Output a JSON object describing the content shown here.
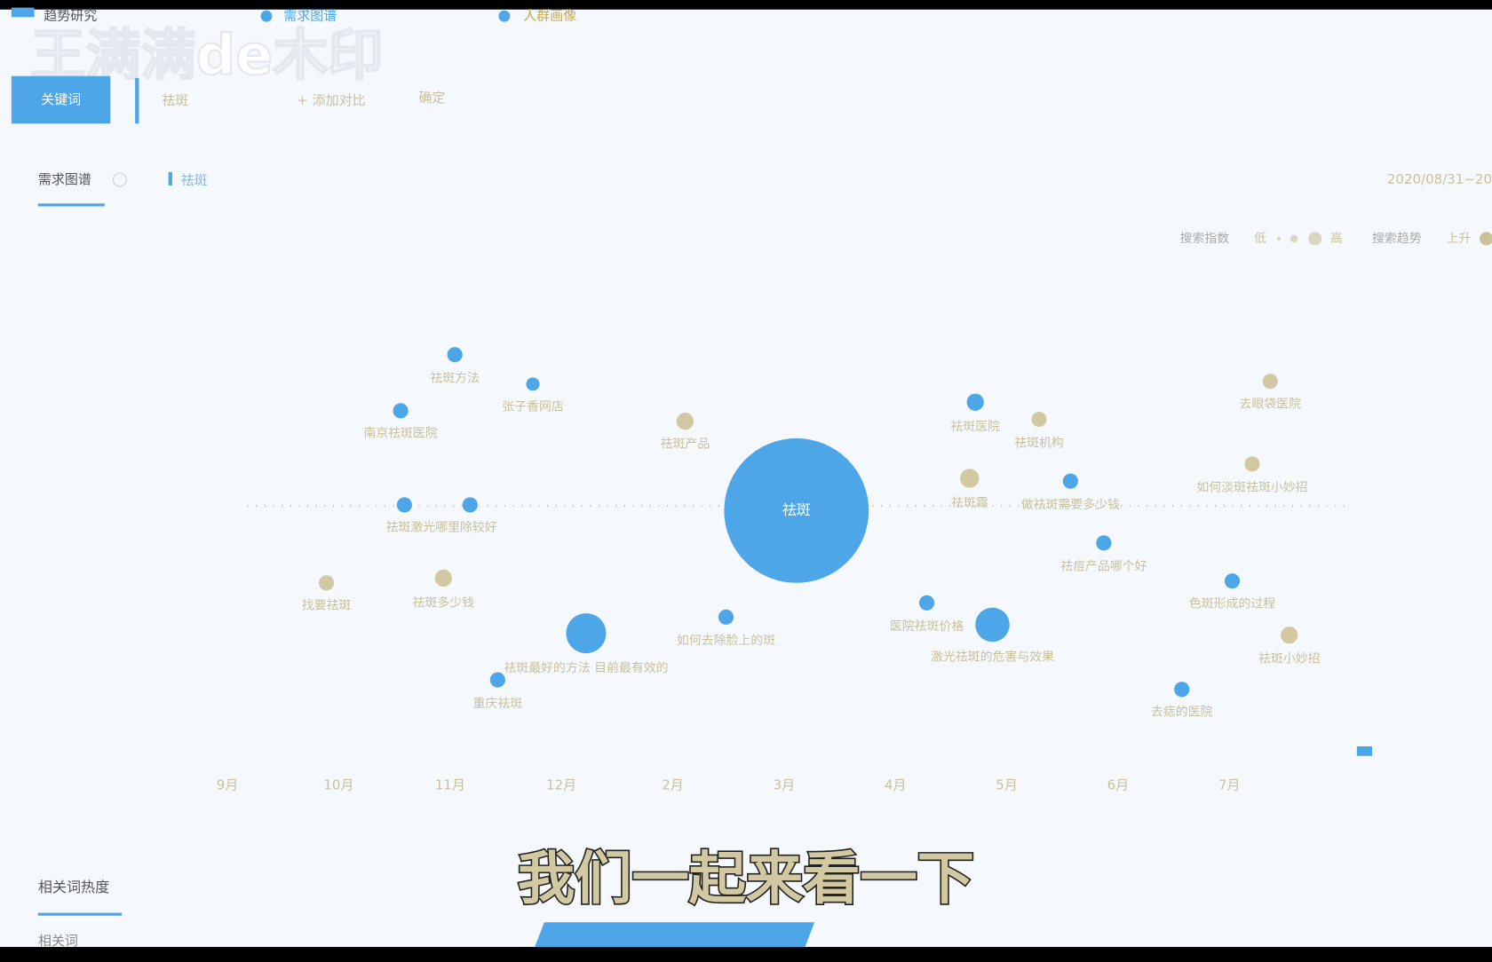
{
  "top_tabs": [
    "趋势研究",
    "需求图谱",
    "人群画像"
  ],
  "watermark": "王满满de木印",
  "search": {
    "button": "关键词",
    "keyword": "祛斑",
    "add": "+ 添加对比",
    "confirm": "确定"
  },
  "section": {
    "tab": "需求图谱",
    "keyword": "祛斑",
    "date": "2020/08/31~20"
  },
  "legend": {
    "index_title": "搜索指数",
    "low": "低",
    "high": "高",
    "trend_title": "搜索趋势",
    "rise": "上升"
  },
  "center": {
    "label": "祛斑",
    "color": "#4da6e8"
  },
  "nodes": [
    {
      "label": "祛斑方法",
      "color": "#4da6e8"
    },
    {
      "label": "张子香网店",
      "color": "#4da6e8"
    },
    {
      "label": "南京祛斑医院",
      "color": "#4da6e8"
    },
    {
      "label": "祛斑产品",
      "color": "#d2c9a3"
    },
    {
      "label": "祛斑激光哪里除较好",
      "color": "#4da6e8"
    },
    {
      "label": "找要祛斑",
      "color": "#d2c9a3"
    },
    {
      "label": "祛斑多少钱",
      "color": "#d2c9a3"
    },
    {
      "label": "祛斑最好的方法 目前最有效的",
      "color": "#4da6e8"
    },
    {
      "label": "如何去除脸上的斑",
      "color": "#4da6e8"
    },
    {
      "label": "重庆祛斑",
      "color": "#4da6e8"
    },
    {
      "label": "祛斑医院",
      "color": "#4da6e8"
    },
    {
      "label": "祛斑机构",
      "color": "#d2c9a3"
    },
    {
      "label": "祛斑霜",
      "color": "#d2c9a3"
    },
    {
      "label": "做祛斑需要多少钱",
      "color": "#4da6e8"
    },
    {
      "label": "去眼袋医院",
      "color": "#d2c9a3"
    },
    {
      "label": "如何淡斑祛斑小妙招",
      "color": "#d2c9a3"
    },
    {
      "label": "祛痘产品哪个好",
      "color": "#4da6e8"
    },
    {
      "label": "医院祛斑价格",
      "color": "#4da6e8"
    },
    {
      "label": "激光祛斑的危害与效果",
      "color": "#4da6e8"
    },
    {
      "label": "色斑形成的过程",
      "color": "#4da6e8"
    },
    {
      "label": "祛斑小妙招",
      "color": "#d2c9a3"
    },
    {
      "label": "去痣的医院",
      "color": "#4da6e8"
    }
  ],
  "months": [
    "9月",
    "10月",
    "11月",
    "12月",
    "2月",
    "3月",
    "4月",
    "5月",
    "6月",
    "7月"
  ],
  "caption": "我们一起来看一下",
  "bottom": {
    "tab": "相关词热度",
    "sub": "相关词"
  }
}
